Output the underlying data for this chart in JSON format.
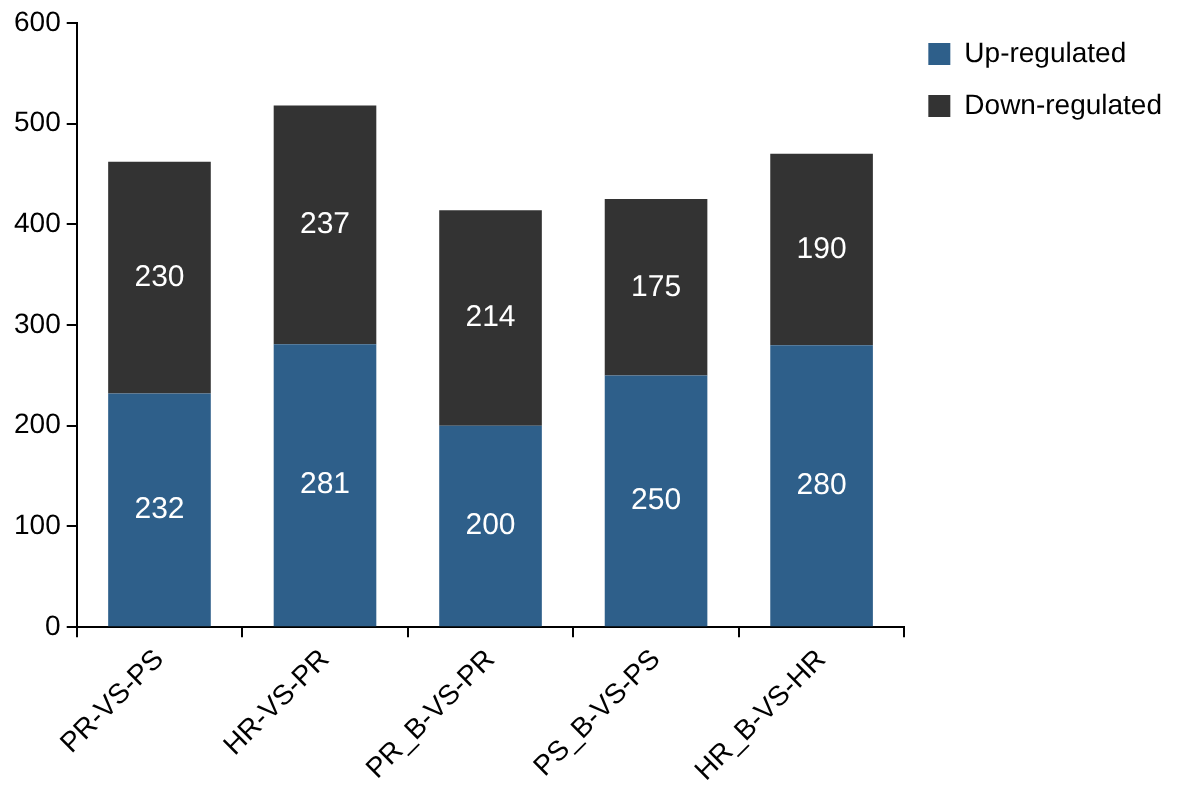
{
  "chart_data": {
    "type": "bar",
    "stacked": true,
    "categories": [
      "PR-VS-PS",
      "HR-VS-PR",
      "PR_B-VS-PR",
      "PS_B-VS-PS",
      "HR_B-VS-HR"
    ],
    "series": [
      {
        "name": "Up-regulated",
        "color": "#2e5f8a",
        "values": [
          232,
          281,
          200,
          250,
          280
        ]
      },
      {
        "name": "Down-regulated",
        "color": "#333333",
        "values": [
          230,
          237,
          214,
          175,
          190
        ]
      }
    ],
    "ylim": [
      0,
      600
    ],
    "yticks": [
      0,
      100,
      200,
      300,
      400,
      500,
      600
    ],
    "data_labels": true,
    "legend": "top right"
  }
}
